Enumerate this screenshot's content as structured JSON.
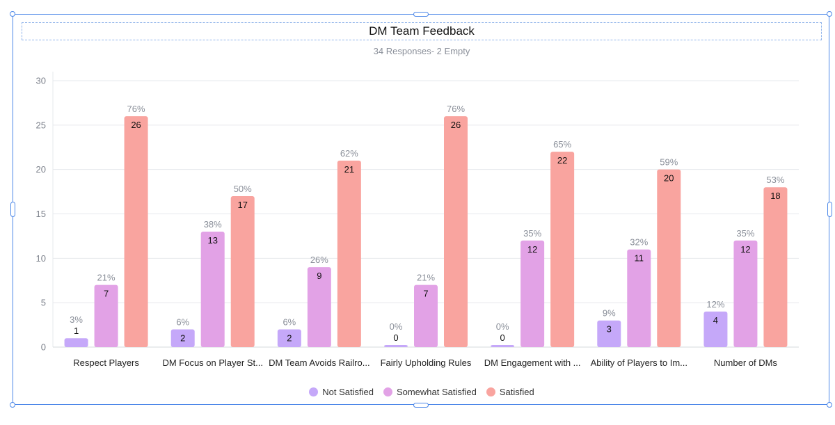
{
  "chart_data": {
    "type": "bar",
    "title": "DM Team Feedback",
    "subtitle": "34 Responses- 2 Empty",
    "categories": [
      "Respect Players",
      "DM Focus on Player St...",
      "DM Team Avoids Railro...",
      "Fairly Upholding Rules",
      "DM Engagement with ...",
      "Ability of Players to Im...",
      "Number of DMs"
    ],
    "series": [
      {
        "name": "Not Satisfied",
        "color": "#c5a8f9",
        "values": [
          1,
          2,
          2,
          0,
          0,
          3,
          4
        ],
        "percents": [
          "3%",
          "6%",
          "6%",
          "0%",
          "0%",
          "9%",
          "12%"
        ]
      },
      {
        "name": "Somewhat Satisfied",
        "color": "#e2a2e6",
        "values": [
          7,
          13,
          9,
          7,
          12,
          11,
          12
        ],
        "percents": [
          "21%",
          "38%",
          "26%",
          "21%",
          "35%",
          "32%",
          "35%"
        ]
      },
      {
        "name": "Satisfied",
        "color": "#f9a49f",
        "values": [
          26,
          17,
          21,
          26,
          22,
          20,
          18
        ],
        "percents": [
          "76%",
          "50%",
          "62%",
          "76%",
          "65%",
          "59%",
          "53%"
        ]
      }
    ],
    "ylim": [
      0,
      30
    ],
    "yticks": [
      0,
      5,
      10,
      15,
      20,
      25,
      30
    ],
    "grid": true,
    "legend_position": "bottom-center"
  }
}
